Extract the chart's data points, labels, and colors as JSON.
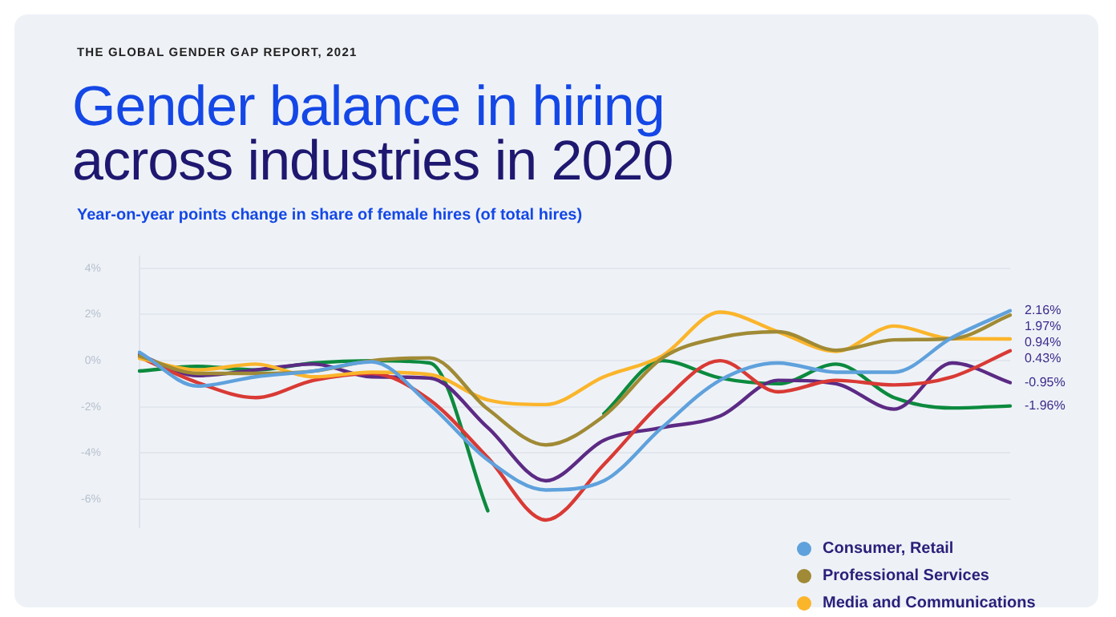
{
  "chart_data": {
    "type": "line",
    "title": "Gender balance in hiring\nacross industries in 2020",
    "subtitle": "Year-on-year points change in share of female hires (of total hires)",
    "annotations": [
      "THE GLOBAL GENDER GAP REPORT, 2021"
    ],
    "categories": [
      null,
      null,
      null,
      null,
      null,
      null,
      null,
      null,
      null,
      null,
      null,
      null,
      null,
      null,
      null,
      null
    ],
    "ylim": [
      -7.2,
      4.5
    ],
    "yticks": [
      {
        "value": 4,
        "label": "4%"
      },
      {
        "value": 2,
        "label": "2%"
      },
      {
        "value": 0,
        "label": "0%"
      },
      {
        "value": -2,
        "label": "-2%"
      },
      {
        "value": -4,
        "label": "-4%"
      },
      {
        "value": -6,
        "label": "-6%"
      }
    ],
    "grid": "y",
    "legend": "bottom right",
    "marker": "none",
    "line_style": "solid",
    "series": [
      {
        "name": "Consumer, Retail",
        "color": "#5fa1dc",
        "values": [
          0.36,
          -1.1,
          -0.7,
          -0.45,
          -0.05,
          -1.9,
          -4.3,
          -5.6,
          -5.2,
          -2.9,
          -0.85,
          -0.1,
          -0.5,
          -0.5,
          1.0,
          2.16
        ],
        "value_labels": [
          null,
          null,
          null,
          null,
          null,
          null,
          null,
          null,
          null,
          null,
          null,
          null,
          null,
          null,
          null,
          "2.16%"
        ]
      },
      {
        "name": "Professional Services",
        "color": "#a08a35",
        "values": [
          0.2,
          -0.55,
          -0.55,
          -0.45,
          0,
          0.12,
          -2.1,
          -3.65,
          -2.4,
          0.1,
          1.0,
          1.25,
          0.45,
          0.9,
          0.95,
          1.97
        ],
        "value_labels": [
          null,
          null,
          null,
          null,
          null,
          null,
          null,
          null,
          null,
          null,
          null,
          null,
          null,
          null,
          null,
          "1.97%"
        ]
      },
      {
        "name": "Media and Communications",
        "color": "#fbb52b",
        "values": [
          0.1,
          -0.4,
          -0.15,
          -0.7,
          -0.5,
          -0.6,
          -1.7,
          -1.9,
          -0.7,
          0.2,
          2.1,
          1.25,
          0.4,
          1.5,
          0.95,
          0.94
        ],
        "value_labels": [
          null,
          null,
          null,
          null,
          null,
          null,
          null,
          null,
          null,
          null,
          null,
          null,
          null,
          null,
          null,
          "0.94%"
        ]
      },
      {
        "color": "#d93a35",
        "values": [
          0.15,
          -0.95,
          -1.6,
          -0.85,
          -0.55,
          -1.7,
          -4.2,
          -6.9,
          -4.5,
          -1.8,
          0,
          -1.35,
          -0.85,
          -1.05,
          -0.7,
          0.43
        ],
        "value_labels": [
          null,
          null,
          null,
          null,
          null,
          null,
          null,
          null,
          null,
          null,
          null,
          null,
          null,
          null,
          null,
          "0.43%"
        ]
      },
      {
        "color": "#5c2a84",
        "values": [
          0.25,
          -0.65,
          -0.4,
          -0.15,
          -0.7,
          -0.75,
          -2.9,
          -5.2,
          -3.45,
          -2.9,
          -2.4,
          -0.85,
          -1.0,
          -2.1,
          -0.1,
          -0.95
        ],
        "value_labels": [
          null,
          null,
          null,
          null,
          null,
          null,
          null,
          null,
          null,
          null,
          null,
          null,
          null,
          null,
          null,
          "-0.95%"
        ]
      },
      {
        "color": "#0c8a3e",
        "values": [
          -0.45,
          -0.25,
          -0.4,
          -0.1,
          0,
          -0.1,
          -6.5,
          null,
          -2.3,
          0,
          -0.75,
          -1.0,
          -0.15,
          -1.6,
          -2.05,
          -1.96
        ],
        "value_labels": [
          null,
          null,
          null,
          null,
          null,
          null,
          null,
          null,
          null,
          null,
          null,
          null,
          null,
          null,
          null,
          "-1.96%"
        ]
      }
    ]
  }
}
